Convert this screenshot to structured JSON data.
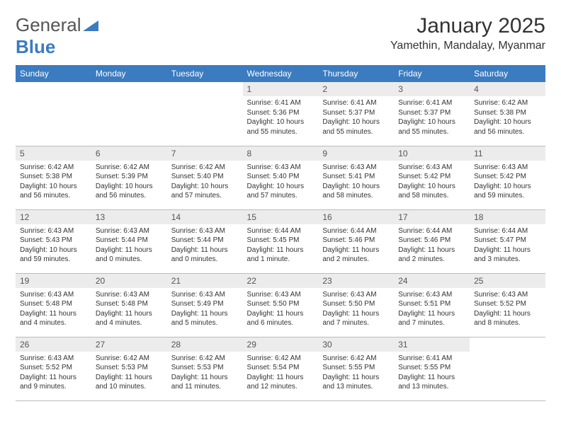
{
  "logo": {
    "text1": "General",
    "text2": "Blue"
  },
  "title": "January 2025",
  "location": "Yamethin, Mandalay, Myanmar",
  "colors": {
    "header_bg": "#3b7bbf",
    "header_text": "#ffffff",
    "daynum_bg": "#ececec",
    "body_text": "#333333",
    "logo_gray": "#555555",
    "logo_blue": "#3b7bbf"
  },
  "fonts": {
    "title_size": 30,
    "location_size": 16,
    "th_size": 12,
    "cell_size": 10
  },
  "weekdays": [
    "Sunday",
    "Monday",
    "Tuesday",
    "Wednesday",
    "Thursday",
    "Friday",
    "Saturday"
  ],
  "weeks": [
    [
      null,
      null,
      null,
      {
        "n": "1",
        "sr": "6:41 AM",
        "ss": "5:36 PM",
        "dl": "10 hours and 55 minutes."
      },
      {
        "n": "2",
        "sr": "6:41 AM",
        "ss": "5:37 PM",
        "dl": "10 hours and 55 minutes."
      },
      {
        "n": "3",
        "sr": "6:41 AM",
        "ss": "5:37 PM",
        "dl": "10 hours and 55 minutes."
      },
      {
        "n": "4",
        "sr": "6:42 AM",
        "ss": "5:38 PM",
        "dl": "10 hours and 56 minutes."
      }
    ],
    [
      {
        "n": "5",
        "sr": "6:42 AM",
        "ss": "5:38 PM",
        "dl": "10 hours and 56 minutes."
      },
      {
        "n": "6",
        "sr": "6:42 AM",
        "ss": "5:39 PM",
        "dl": "10 hours and 56 minutes."
      },
      {
        "n": "7",
        "sr": "6:42 AM",
        "ss": "5:40 PM",
        "dl": "10 hours and 57 minutes."
      },
      {
        "n": "8",
        "sr": "6:43 AM",
        "ss": "5:40 PM",
        "dl": "10 hours and 57 minutes."
      },
      {
        "n": "9",
        "sr": "6:43 AM",
        "ss": "5:41 PM",
        "dl": "10 hours and 58 minutes."
      },
      {
        "n": "10",
        "sr": "6:43 AM",
        "ss": "5:42 PM",
        "dl": "10 hours and 58 minutes."
      },
      {
        "n": "11",
        "sr": "6:43 AM",
        "ss": "5:42 PM",
        "dl": "10 hours and 59 minutes."
      }
    ],
    [
      {
        "n": "12",
        "sr": "6:43 AM",
        "ss": "5:43 PM",
        "dl": "10 hours and 59 minutes."
      },
      {
        "n": "13",
        "sr": "6:43 AM",
        "ss": "5:44 PM",
        "dl": "11 hours and 0 minutes."
      },
      {
        "n": "14",
        "sr": "6:43 AM",
        "ss": "5:44 PM",
        "dl": "11 hours and 0 minutes."
      },
      {
        "n": "15",
        "sr": "6:44 AM",
        "ss": "5:45 PM",
        "dl": "11 hours and 1 minute."
      },
      {
        "n": "16",
        "sr": "6:44 AM",
        "ss": "5:46 PM",
        "dl": "11 hours and 2 minutes."
      },
      {
        "n": "17",
        "sr": "6:44 AM",
        "ss": "5:46 PM",
        "dl": "11 hours and 2 minutes."
      },
      {
        "n": "18",
        "sr": "6:44 AM",
        "ss": "5:47 PM",
        "dl": "11 hours and 3 minutes."
      }
    ],
    [
      {
        "n": "19",
        "sr": "6:43 AM",
        "ss": "5:48 PM",
        "dl": "11 hours and 4 minutes."
      },
      {
        "n": "20",
        "sr": "6:43 AM",
        "ss": "5:48 PM",
        "dl": "11 hours and 4 minutes."
      },
      {
        "n": "21",
        "sr": "6:43 AM",
        "ss": "5:49 PM",
        "dl": "11 hours and 5 minutes."
      },
      {
        "n": "22",
        "sr": "6:43 AM",
        "ss": "5:50 PM",
        "dl": "11 hours and 6 minutes."
      },
      {
        "n": "23",
        "sr": "6:43 AM",
        "ss": "5:50 PM",
        "dl": "11 hours and 7 minutes."
      },
      {
        "n": "24",
        "sr": "6:43 AM",
        "ss": "5:51 PM",
        "dl": "11 hours and 7 minutes."
      },
      {
        "n": "25",
        "sr": "6:43 AM",
        "ss": "5:52 PM",
        "dl": "11 hours and 8 minutes."
      }
    ],
    [
      {
        "n": "26",
        "sr": "6:43 AM",
        "ss": "5:52 PM",
        "dl": "11 hours and 9 minutes."
      },
      {
        "n": "27",
        "sr": "6:42 AM",
        "ss": "5:53 PM",
        "dl": "11 hours and 10 minutes."
      },
      {
        "n": "28",
        "sr": "6:42 AM",
        "ss": "5:53 PM",
        "dl": "11 hours and 11 minutes."
      },
      {
        "n": "29",
        "sr": "6:42 AM",
        "ss": "5:54 PM",
        "dl": "11 hours and 12 minutes."
      },
      {
        "n": "30",
        "sr": "6:42 AM",
        "ss": "5:55 PM",
        "dl": "11 hours and 13 minutes."
      },
      {
        "n": "31",
        "sr": "6:41 AM",
        "ss": "5:55 PM",
        "dl": "11 hours and 13 minutes."
      },
      null
    ]
  ],
  "labels": {
    "sunrise": "Sunrise:",
    "sunset": "Sunset:",
    "daylight": "Daylight:"
  }
}
